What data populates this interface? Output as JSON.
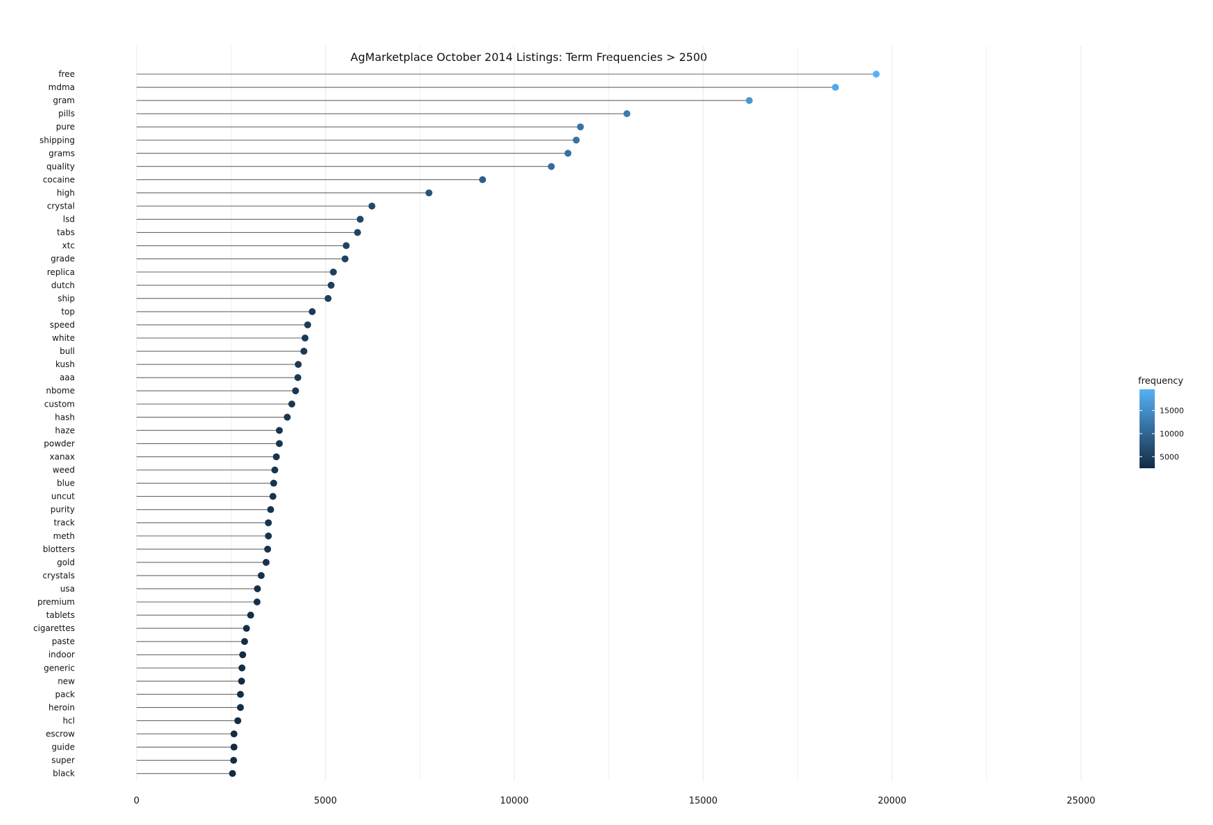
{
  "chart_data": {
    "type": "lollipop",
    "title": "AgMarketplace October 2014 Listings: Term Frequencies > 2500",
    "xlabel": "",
    "ylabel": "",
    "xlim": [
      0,
      27000
    ],
    "x_ticks": [
      0,
      5000,
      10000,
      15000,
      20000,
      25000
    ],
    "x_tick_labels": [
      "0",
      "5000",
      "10000",
      "15000",
      "20000",
      "25000"
    ],
    "grid": "vertical",
    "legend": {
      "title": "frequency",
      "placement": "right",
      "ticks": [
        5000,
        10000,
        15000
      ],
      "tick_labels": [
        "5000",
        "10000",
        "15000"
      ],
      "range": [
        2500,
        19600
      ],
      "color_low": "#132b43",
      "color_high": "#56b1f7"
    },
    "categories": [
      "free",
      "mdma",
      "gram",
      "pills",
      "pure",
      "shipping",
      "grams",
      "quality",
      "cocaine",
      "high",
      "crystal",
      "lsd",
      "tabs",
      "xtc",
      "grade",
      "replica",
      "dutch",
      "ship",
      "top",
      "speed",
      "white",
      "bull",
      "kush",
      "aaa",
      "nbome",
      "custom",
      "hash",
      "haze",
      "powder",
      "xanax",
      "weed",
      "blue",
      "uncut",
      "purity",
      "track",
      "meth",
      "blotters",
      "gold",
      "crystals",
      "usa",
      "premium",
      "tablets",
      "cigarettes",
      "paste",
      "indoor",
      "generic",
      "new",
      "pack",
      "heroin",
      "hcl",
      "escrow",
      "guide",
      "super",
      "black"
    ],
    "values": [
      19580,
      18500,
      16220,
      12980,
      11750,
      11640,
      11420,
      10980,
      9160,
      7740,
      6230,
      5920,
      5850,
      5550,
      5520,
      5210,
      5150,
      5070,
      4650,
      4530,
      4460,
      4430,
      4280,
      4270,
      4210,
      4110,
      3990,
      3780,
      3780,
      3700,
      3660,
      3630,
      3610,
      3550,
      3490,
      3490,
      3470,
      3430,
      3300,
      3200,
      3190,
      3020,
      2910,
      2860,
      2810,
      2790,
      2780,
      2750,
      2750,
      2680,
      2580,
      2580,
      2570,
      2540
    ],
    "colors": {
      "stem": "#666666",
      "grid": "#ececec"
    }
  }
}
